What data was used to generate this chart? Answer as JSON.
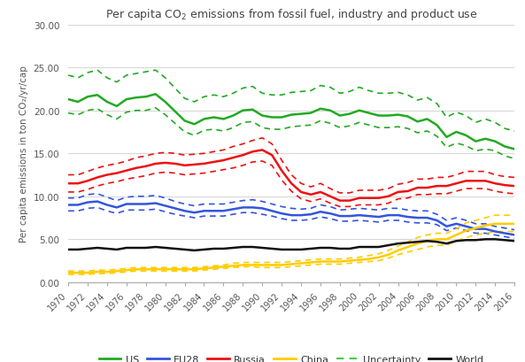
{
  "title": "Per capita CO₂ emissions from fossil fuel, industry and product use",
  "ylabel": "Per capita emissions in ton CO₂/yr/cap",
  "years": [
    1970,
    1971,
    1972,
    1973,
    1974,
    1975,
    1976,
    1977,
    1978,
    1979,
    1980,
    1981,
    1982,
    1983,
    1984,
    1985,
    1986,
    1987,
    1988,
    1989,
    1990,
    1991,
    1992,
    1993,
    1994,
    1995,
    1996,
    1997,
    1998,
    1999,
    2000,
    2001,
    2002,
    2003,
    2004,
    2005,
    2006,
    2007,
    2008,
    2009,
    2010,
    2011,
    2012,
    2013,
    2014,
    2015,
    2016
  ],
  "US": [
    21.3,
    21.0,
    21.6,
    21.8,
    21.0,
    20.5,
    21.3,
    21.5,
    21.6,
    21.9,
    21.0,
    19.9,
    18.8,
    18.4,
    19.0,
    19.2,
    19.0,
    19.4,
    20.0,
    20.1,
    19.4,
    19.2,
    19.2,
    19.5,
    19.6,
    19.7,
    20.2,
    20.0,
    19.4,
    19.6,
    20.0,
    19.7,
    19.4,
    19.4,
    19.5,
    19.3,
    18.7,
    19.0,
    18.3,
    16.9,
    17.5,
    17.1,
    16.4,
    16.7,
    16.4,
    15.8,
    15.5
  ],
  "US_upper": [
    24.1,
    23.8,
    24.4,
    24.7,
    23.8,
    23.3,
    24.1,
    24.3,
    24.5,
    24.7,
    23.8,
    22.6,
    21.4,
    21.0,
    21.6,
    21.8,
    21.6,
    22.0,
    22.6,
    22.8,
    22.0,
    21.8,
    21.8,
    22.1,
    22.2,
    22.3,
    22.9,
    22.7,
    22.0,
    22.2,
    22.7,
    22.3,
    22.0,
    22.0,
    22.1,
    21.8,
    21.2,
    21.5,
    20.8,
    19.2,
    19.8,
    19.4,
    18.6,
    19.0,
    18.6,
    17.9,
    17.6
  ],
  "US_lower": [
    19.7,
    19.5,
    20.0,
    20.2,
    19.5,
    19.0,
    19.8,
    20.0,
    20.0,
    20.3,
    19.5,
    18.5,
    17.5,
    17.1,
    17.7,
    17.8,
    17.6,
    18.0,
    18.6,
    18.7,
    18.0,
    17.8,
    17.8,
    18.1,
    18.2,
    18.3,
    18.8,
    18.5,
    18.0,
    18.2,
    18.6,
    18.3,
    18.0,
    18.0,
    18.1,
    17.9,
    17.4,
    17.6,
    17.0,
    15.7,
    16.2,
    15.9,
    15.3,
    15.5,
    15.3,
    14.7,
    14.4
  ],
  "EU28": [
    9.0,
    9.0,
    9.3,
    9.4,
    9.0,
    8.7,
    9.1,
    9.1,
    9.1,
    9.2,
    8.9,
    8.6,
    8.3,
    8.1,
    8.3,
    8.3,
    8.3,
    8.5,
    8.7,
    8.7,
    8.6,
    8.3,
    8.0,
    7.8,
    7.8,
    7.9,
    8.2,
    8.0,
    7.7,
    7.7,
    7.8,
    7.7,
    7.6,
    7.8,
    7.8,
    7.6,
    7.5,
    7.5,
    7.2,
    6.5,
    6.8,
    6.5,
    6.2,
    6.2,
    5.9,
    5.7,
    5.5
  ],
  "EU28_upper": [
    9.8,
    9.8,
    10.2,
    10.3,
    9.9,
    9.5,
    9.9,
    10.0,
    10.0,
    10.1,
    9.8,
    9.4,
    9.1,
    8.9,
    9.1,
    9.1,
    9.1,
    9.3,
    9.5,
    9.6,
    9.4,
    9.1,
    8.8,
    8.6,
    8.5,
    8.6,
    9.0,
    8.8,
    8.4,
    8.5,
    8.6,
    8.5,
    8.4,
    8.6,
    8.6,
    8.4,
    8.3,
    8.3,
    7.9,
    7.2,
    7.5,
    7.2,
    6.8,
    6.8,
    6.5,
    6.3,
    6.1
  ],
  "EU28_lower": [
    8.3,
    8.3,
    8.6,
    8.7,
    8.3,
    8.0,
    8.4,
    8.4,
    8.4,
    8.5,
    8.2,
    7.9,
    7.7,
    7.5,
    7.7,
    7.7,
    7.7,
    7.9,
    8.1,
    8.1,
    7.9,
    7.7,
    7.4,
    7.2,
    7.2,
    7.3,
    7.6,
    7.4,
    7.1,
    7.1,
    7.2,
    7.1,
    7.0,
    7.2,
    7.2,
    7.0,
    6.9,
    6.9,
    6.7,
    6.0,
    6.3,
    6.0,
    5.7,
    5.7,
    5.5,
    5.3,
    5.1
  ],
  "Russia": [
    11.5,
    11.5,
    11.8,
    12.2,
    12.5,
    12.7,
    13.0,
    13.3,
    13.5,
    13.8,
    13.9,
    13.8,
    13.6,
    13.7,
    13.8,
    14.0,
    14.2,
    14.5,
    14.8,
    15.2,
    15.4,
    14.8,
    13.0,
    11.5,
    10.5,
    10.2,
    10.5,
    10.0,
    9.5,
    9.5,
    9.8,
    9.8,
    9.8,
    10.0,
    10.5,
    10.6,
    11.0,
    11.0,
    11.2,
    11.2,
    11.5,
    11.8,
    11.8,
    11.8,
    11.5,
    11.3,
    11.2
  ],
  "Russia_upper": [
    12.5,
    12.5,
    12.9,
    13.3,
    13.6,
    13.8,
    14.1,
    14.5,
    14.7,
    15.0,
    15.1,
    15.0,
    14.8,
    14.9,
    15.0,
    15.2,
    15.4,
    15.8,
    16.1,
    16.5,
    16.8,
    16.1,
    14.2,
    12.5,
    11.5,
    11.1,
    11.5,
    10.9,
    10.4,
    10.4,
    10.7,
    10.7,
    10.7,
    10.9,
    11.4,
    11.6,
    12.0,
    12.0,
    12.2,
    12.2,
    12.5,
    12.9,
    12.9,
    12.9,
    12.5,
    12.3,
    12.2
  ],
  "Russia_lower": [
    10.5,
    10.5,
    10.8,
    11.2,
    11.5,
    11.7,
    12.0,
    12.2,
    12.4,
    12.7,
    12.8,
    12.7,
    12.5,
    12.6,
    12.7,
    12.9,
    13.1,
    13.3,
    13.6,
    14.0,
    14.1,
    13.6,
    11.9,
    10.6,
    9.7,
    9.4,
    9.7,
    9.2,
    8.8,
    8.8,
    9.0,
    9.0,
    9.0,
    9.2,
    9.7,
    9.8,
    10.2,
    10.2,
    10.3,
    10.3,
    10.6,
    10.9,
    10.9,
    10.9,
    10.6,
    10.4,
    10.3
  ],
  "China": [
    1.1,
    1.1,
    1.1,
    1.2,
    1.2,
    1.3,
    1.4,
    1.5,
    1.5,
    1.5,
    1.5,
    1.5,
    1.5,
    1.5,
    1.6,
    1.7,
    1.8,
    1.9,
    2.0,
    2.0,
    2.0,
    2.0,
    2.0,
    2.1,
    2.2,
    2.3,
    2.4,
    2.4,
    2.4,
    2.5,
    2.6,
    2.7,
    2.9,
    3.2,
    3.7,
    4.1,
    4.5,
    4.8,
    5.0,
    5.0,
    5.5,
    6.0,
    6.3,
    6.6,
    6.8,
    6.8,
    6.8
  ],
  "China_upper": [
    1.3,
    1.3,
    1.3,
    1.4,
    1.4,
    1.5,
    1.6,
    1.7,
    1.7,
    1.7,
    1.7,
    1.7,
    1.7,
    1.7,
    1.8,
    1.9,
    2.0,
    2.2,
    2.3,
    2.3,
    2.3,
    2.3,
    2.3,
    2.4,
    2.5,
    2.6,
    2.7,
    2.7,
    2.7,
    2.8,
    2.9,
    3.1,
    3.3,
    3.7,
    4.2,
    4.7,
    5.2,
    5.5,
    5.7,
    5.7,
    6.2,
    6.9,
    7.2,
    7.5,
    7.8,
    7.8,
    7.8
  ],
  "China_lower": [
    0.9,
    0.9,
    0.9,
    1.0,
    1.0,
    1.1,
    1.2,
    1.3,
    1.3,
    1.3,
    1.3,
    1.3,
    1.3,
    1.3,
    1.4,
    1.5,
    1.6,
    1.7,
    1.8,
    1.8,
    1.7,
    1.7,
    1.7,
    1.8,
    1.9,
    2.0,
    2.1,
    2.1,
    2.1,
    2.2,
    2.3,
    2.4,
    2.5,
    2.8,
    3.2,
    3.5,
    3.8,
    4.1,
    4.3,
    4.3,
    4.8,
    5.2,
    5.5,
    5.7,
    5.9,
    5.9,
    5.9
  ],
  "World": [
    3.8,
    3.8,
    3.9,
    4.0,
    3.9,
    3.8,
    4.0,
    4.0,
    4.0,
    4.1,
    4.0,
    3.9,
    3.8,
    3.7,
    3.8,
    3.9,
    3.9,
    4.0,
    4.1,
    4.1,
    4.0,
    3.9,
    3.8,
    3.8,
    3.8,
    3.9,
    4.0,
    4.0,
    3.9,
    3.9,
    4.1,
    4.1,
    4.1,
    4.3,
    4.5,
    4.6,
    4.7,
    4.8,
    4.7,
    4.5,
    4.8,
    4.9,
    4.9,
    5.0,
    5.0,
    4.9,
    4.8
  ],
  "colors": {
    "US": "#22aa22",
    "EU28": "#3355dd",
    "Russia": "#ee1111",
    "China": "#ffcc00",
    "World": "#111111",
    "Uncertainty_color": "#44cc44"
  },
  "ylim": [
    0.0,
    30.0
  ],
  "yticks": [
    0.0,
    5.0,
    10.0,
    15.0,
    20.0,
    25.0,
    30.0
  ],
  "bg_color": "#ffffff",
  "grid_color": "#d8d8d8"
}
